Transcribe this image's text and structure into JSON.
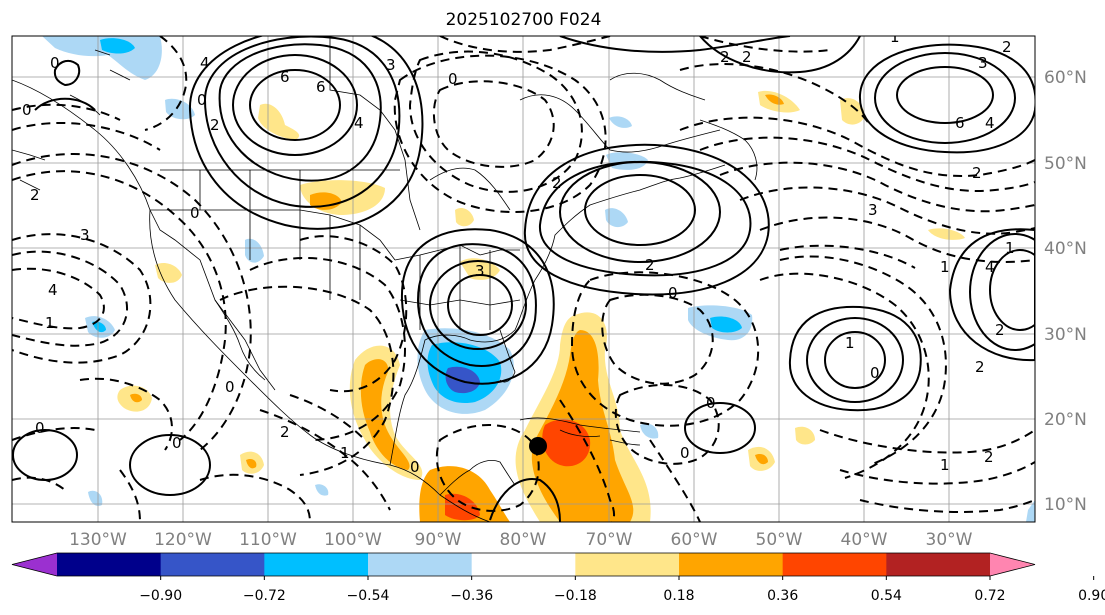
{
  "title": "2025102700 F024",
  "map": {
    "lon_labels": [
      "130°W",
      "120°W",
      "110°W",
      "100°W",
      "90°W",
      "80°W",
      "70°W",
      "60°W",
      "50°W",
      "40°W",
      "30°W"
    ],
    "lat_labels": [
      "60°N",
      "50°N",
      "40°N",
      "30°N",
      "20°N",
      "10°N"
    ]
  },
  "colorbar": {
    "colors": [
      "#9b30d0",
      "#00008b",
      "#3655c8",
      "#00bfff",
      "#add8f5",
      "#ffffff",
      "#ffe68a",
      "#ffa500",
      "#ff4500",
      "#b22222",
      "#ff85b0"
    ],
    "labels": [
      "−0.90",
      "−0.72",
      "−0.54",
      "−0.36",
      "−0.18",
      "0.18",
      "0.36",
      "0.54",
      "0.72",
      "0.90"
    ]
  },
  "contour_labels": [
    "4",
    "6",
    "0",
    "2",
    "6",
    "3",
    "0",
    "4",
    "0",
    "4",
    "2",
    "0",
    "0",
    "2",
    "2",
    "2",
    "3",
    "2",
    "3",
    "3",
    "6",
    "4",
    "2",
    "1",
    "2",
    "3",
    "4",
    "1",
    "2",
    "1",
    "0",
    "1",
    "0",
    "1",
    "0",
    "2",
    "2",
    "0",
    "1",
    "1",
    "2",
    "0",
    "0",
    "0",
    "0"
  ]
}
